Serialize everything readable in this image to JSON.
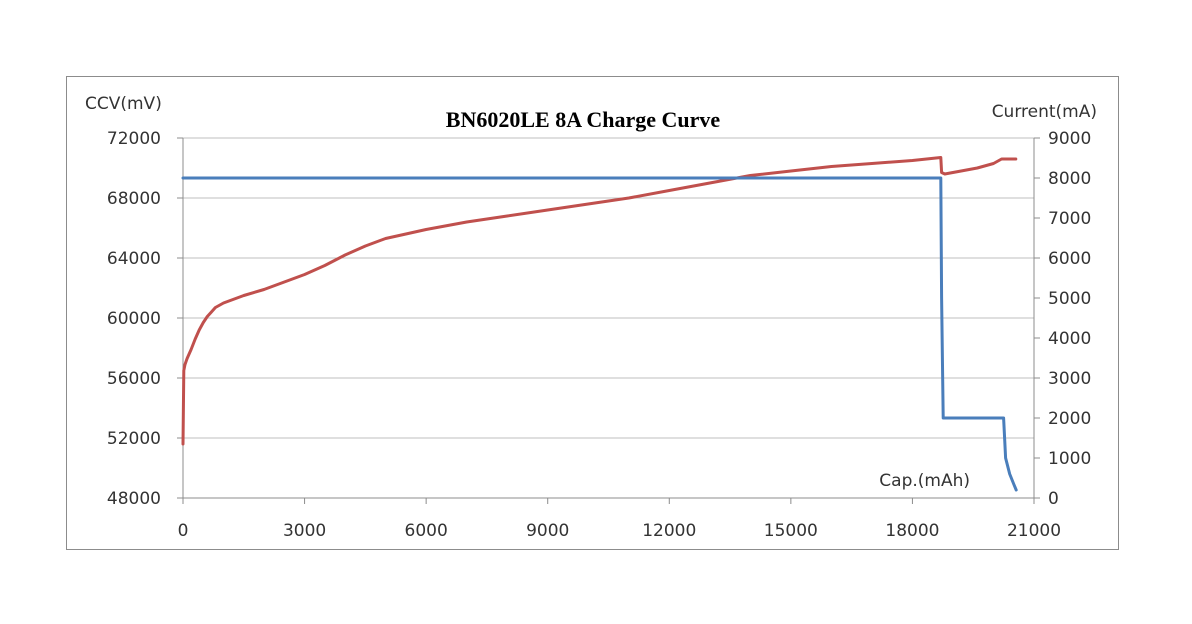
{
  "chart_data": {
    "type": "line",
    "title": "BN6020LE 8A Charge Curve",
    "xlabel": "Cap.(mAh)",
    "ylabel_left": "CCV(mV)",
    "ylabel_right": "Current(mA)",
    "xlim": [
      0,
      21000
    ],
    "ylim_left": [
      48000,
      72000
    ],
    "ylim_right": [
      0,
      9000
    ],
    "x_ticks": [
      "0",
      "3000",
      "6000",
      "9000",
      "12000",
      "15000",
      "18000",
      "21000"
    ],
    "y_left_ticks": [
      "48000",
      "52000",
      "56000",
      "60000",
      "64000",
      "68000",
      "72000"
    ],
    "y_right_ticks": [
      "0",
      "1000",
      "2000",
      "3000",
      "4000",
      "5000",
      "6000",
      "7000",
      "8000",
      "9000"
    ],
    "grid": true,
    "series": [
      {
        "axis": "left",
        "color": "#c0504d",
        "x": [
          0,
          20,
          50,
          100,
          200,
          300,
          400,
          500,
          600,
          700,
          800,
          1000,
          1500,
          2000,
          2500,
          3000,
          3500,
          4000,
          4500,
          5000,
          5500,
          6000,
          7000,
          8000,
          9000,
          10000,
          11000,
          12000,
          13000,
          14000,
          15000,
          16000,
          17000,
          18000,
          18700,
          18720,
          18800,
          19200,
          19600,
          20000,
          20200,
          20400,
          20550
        ],
        "y": [
          51600,
          56500,
          56900,
          57300,
          57900,
          58600,
          59200,
          59700,
          60100,
          60400,
          60700,
          61000,
          61500,
          61900,
          62400,
          62900,
          63500,
          64200,
          64800,
          65300,
          65600,
          65900,
          66400,
          66800,
          67200,
          67600,
          68000,
          68500,
          69000,
          69500,
          69800,
          70100,
          70300,
          70500,
          70700,
          69700,
          69600,
          69800,
          70000,
          70300,
          70600,
          70600,
          70600
        ]
      },
      {
        "axis": "right",
        "color": "#4a7ebb",
        "x": [
          0,
          18700,
          18720,
          18760,
          20250,
          20300,
          20400,
          20500,
          20560
        ],
        "y": [
          8000,
          8000,
          5000,
          2000,
          2000,
          1000,
          600,
          350,
          200
        ]
      }
    ]
  }
}
